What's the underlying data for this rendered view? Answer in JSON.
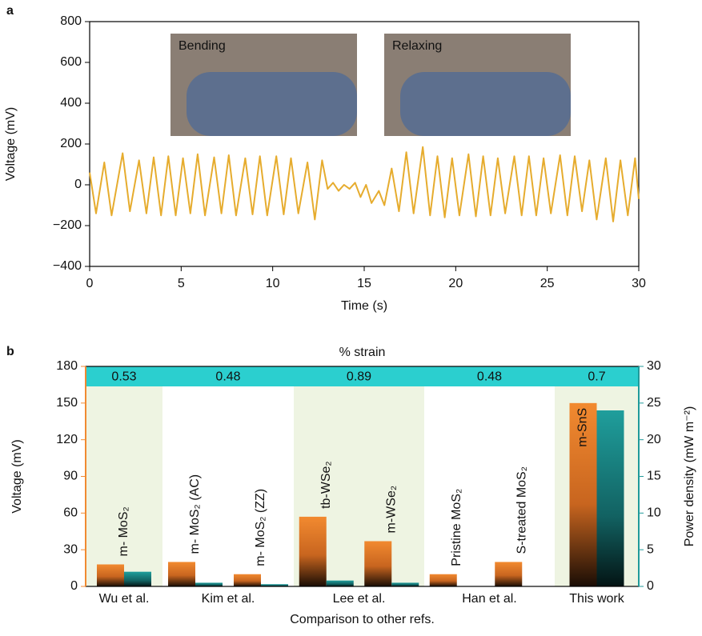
{
  "chart_data": [
    {
      "type": "line",
      "label": "a",
      "xlabel": "Time (s)",
      "ylabel": "Voltage (mV)",
      "color": "#e6ac2e",
      "insets": [
        "Bending",
        "Relaxing"
      ],
      "xlim": [
        0,
        30
      ],
      "xticks": [
        0,
        5,
        10,
        15,
        20,
        25,
        30
      ],
      "ylim": [
        -400,
        800
      ],
      "yticks": [
        {
          "value": -400,
          "label": "−400"
        },
        {
          "value": -200,
          "label": "−200"
        },
        0,
        200,
        400,
        600,
        800
      ],
      "x": [
        0.0,
        0.35,
        0.8,
        1.2,
        1.8,
        2.2,
        2.7,
        3.1,
        3.5,
        3.9,
        4.3,
        4.7,
        5.1,
        5.5,
        5.9,
        6.3,
        6.8,
        7.2,
        7.6,
        8.0,
        8.5,
        8.9,
        9.3,
        9.7,
        10.2,
        10.6,
        11.0,
        11.4,
        11.9,
        12.3,
        12.7,
        13.0,
        13.3,
        13.6,
        13.9,
        14.2,
        14.5,
        14.8,
        15.1,
        15.4,
        15.8,
        16.1,
        16.5,
        16.9,
        17.3,
        17.7,
        18.2,
        18.6,
        19.0,
        19.4,
        19.8,
        20.2,
        20.7,
        21.1,
        21.5,
        21.9,
        22.3,
        22.7,
        23.2,
        23.6,
        24.0,
        24.4,
        24.8,
        25.2,
        25.7,
        26.1,
        26.5,
        26.9,
        27.3,
        27.7,
        28.2,
        28.6,
        29.0,
        29.4,
        29.8,
        30.0
      ],
      "values": [
        60,
        -140,
        110,
        -150,
        155,
        -130,
        120,
        -140,
        135,
        -150,
        140,
        -150,
        130,
        -140,
        150,
        -150,
        135,
        -140,
        145,
        -150,
        130,
        -145,
        140,
        -150,
        140,
        -145,
        130,
        -140,
        110,
        -170,
        120,
        -20,
        10,
        -30,
        0,
        -20,
        10,
        -60,
        0,
        -90,
        -30,
        -100,
        80,
        -130,
        160,
        -140,
        185,
        -150,
        140,
        -160,
        130,
        -150,
        150,
        -155,
        140,
        -150,
        130,
        -140,
        140,
        -150,
        140,
        -150,
        130,
        -140,
        145,
        -150,
        140,
        -130,
        120,
        -170,
        130,
        -180,
        120,
        -150,
        130,
        -70
      ]
    },
    {
      "type": "bar",
      "label": "b",
      "xlabel": "Comparison to other refs.",
      "ylabel": "Voltage (mV)",
      "y2label": "Power density (mW m⁻²)",
      "strain_title": "% strain",
      "groups": [
        {
          "label": "Wu et al.",
          "strain": "0.53"
        },
        {
          "label": "Kim et al.",
          "strain": "0.48"
        },
        {
          "label": "Lee et al.",
          "strain": "0.89"
        },
        {
          "label": "Han et al.",
          "strain": "0.48"
        },
        {
          "label": "This work",
          "strain": "0.7"
        }
      ],
      "categories": [
        "m- MoS₂",
        "m- MoS₂ (AC)",
        "m- MoS₂ (ZZ)",
        "tb-WSe₂",
        "m-WSe₂",
        "Pristine MoS₂",
        "S-treated MoS₂",
        "m-SnS"
      ],
      "series": [
        {
          "color": "#f08a32",
          "values": [
            18,
            20,
            10,
            57,
            37,
            10,
            20,
            150
          ]
        },
        {
          "color": "#1f9a9a",
          "axis": "y2",
          "values": [
            2,
            0.5,
            0.3,
            0.8,
            0.5,
            0,
            0,
            24
          ]
        }
      ],
      "ylim": [
        0,
        180
      ],
      "yticks": [
        0,
        30,
        60,
        90,
        120,
        150,
        180
      ],
      "y2lim": [
        0,
        30
      ],
      "y2ticks": [
        0,
        5,
        10,
        15,
        20,
        25,
        30
      ]
    }
  ]
}
